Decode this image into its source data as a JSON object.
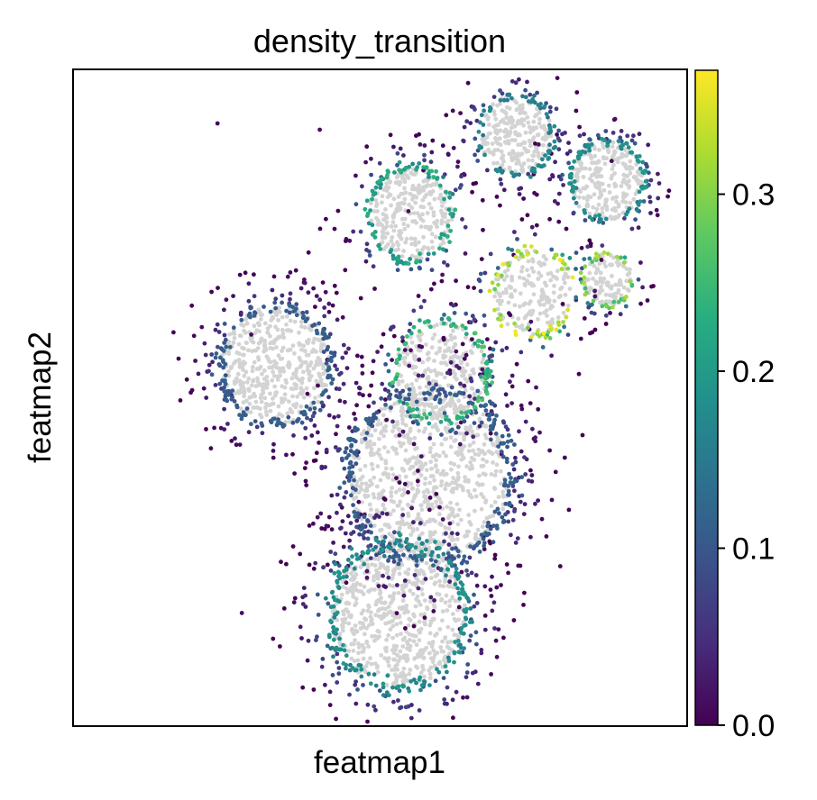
{
  "chart_data": {
    "type": "scatter",
    "title": "density_transition",
    "xlabel": "featmap1",
    "ylabel": "featmap2",
    "x_ticks_shown": false,
    "y_ticks_shown": false,
    "grid": false,
    "background_point_color": "#d3d3d3",
    "colormap": "viridis",
    "colorbar": {
      "range": [
        0.0,
        0.37
      ],
      "ticks": [
        0.0,
        0.1,
        0.2,
        0.3
      ],
      "tick_labels": [
        "0.0",
        "0.1",
        "0.2",
        "0.3"
      ],
      "location": "right"
    },
    "clusters": [
      {
        "cx": 0.33,
        "cy": 0.55,
        "r": 0.09,
        "edge_value": 0.12,
        "n": 420
      },
      {
        "cx": 0.55,
        "cy": 0.78,
        "r": 0.07,
        "edge_value": 0.24,
        "n": 260
      },
      {
        "cx": 0.72,
        "cy": 0.9,
        "r": 0.06,
        "edge_value": 0.18,
        "n": 220
      },
      {
        "cx": 0.87,
        "cy": 0.83,
        "r": 0.06,
        "edge_value": 0.2,
        "n": 230
      },
      {
        "cx": 0.6,
        "cy": 0.54,
        "r": 0.075,
        "edge_value": 0.27,
        "n": 260
      },
      {
        "cx": 0.75,
        "cy": 0.66,
        "r": 0.065,
        "edge_value": 0.37,
        "n": 160
      },
      {
        "cx": 0.87,
        "cy": 0.68,
        "r": 0.04,
        "edge_value": 0.33,
        "n": 100
      },
      {
        "cx": 0.58,
        "cy": 0.38,
        "r": 0.13,
        "edge_value": 0.12,
        "n": 700
      },
      {
        "cx": 0.53,
        "cy": 0.17,
        "r": 0.11,
        "edge_value": 0.2,
        "n": 600
      }
    ]
  }
}
